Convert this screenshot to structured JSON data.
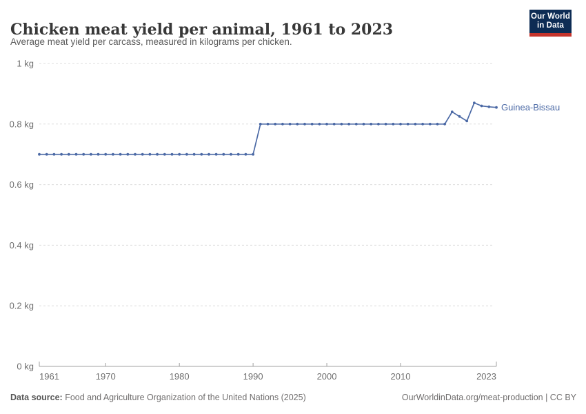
{
  "header": {
    "title": "Chicken meat yield per animal, 1961 to 2023",
    "subtitle": "Average meat yield per carcass, measured in kilograms per chicken."
  },
  "logo": {
    "line1": "Our World",
    "line2": "in Data",
    "bg_color": "#0d2c54",
    "accent_color": "#c5342c"
  },
  "footer": {
    "source_label": "Data source:",
    "source_text": "Food and Agriculture Organization of the United Nations (2025)",
    "citation": "OurWorldinData.org/meat-production | CC BY"
  },
  "chart_data": {
    "type": "line",
    "title": "Chicken meat yield per animal, 1961 to 2023",
    "subtitle": "Average meat yield per carcass, measured in kilograms per chicken.",
    "unit": "kg",
    "xlabel": "",
    "ylabel": "",
    "xlim": [
      1961,
      2023
    ],
    "ylim": [
      0,
      1
    ],
    "grid": "horizontal-dashed",
    "legend": "inline-end-label",
    "grid_color": "#dcdcdc",
    "axis_color": "#a0a0a0",
    "tick_label_color": "#6e6e6e",
    "xticks": [
      1961,
      1970,
      1980,
      1990,
      2000,
      2010,
      2023
    ],
    "yticks": [
      {
        "value": 0,
        "label": "0 kg"
      },
      {
        "value": 0.2,
        "label": "0.2 kg"
      },
      {
        "value": 0.4,
        "label": "0.4 kg"
      },
      {
        "value": 0.6,
        "label": "0.6 kg"
      },
      {
        "value": 0.8,
        "label": "0.8 kg"
      },
      {
        "value": 1,
        "label": "1 kg"
      }
    ],
    "series": [
      {
        "name": "Guinea-Bissau",
        "color": "#4b69a5",
        "x": [
          1961,
          1962,
          1963,
          1964,
          1965,
          1966,
          1967,
          1968,
          1969,
          1970,
          1971,
          1972,
          1973,
          1974,
          1975,
          1976,
          1977,
          1978,
          1979,
          1980,
          1981,
          1982,
          1983,
          1984,
          1985,
          1986,
          1987,
          1988,
          1989,
          1990,
          1991,
          1992,
          1993,
          1994,
          1995,
          1996,
          1997,
          1998,
          1999,
          2000,
          2001,
          2002,
          2003,
          2004,
          2005,
          2006,
          2007,
          2008,
          2009,
          2010,
          2011,
          2012,
          2013,
          2014,
          2015,
          2016,
          2017,
          2018,
          2019,
          2020,
          2021,
          2022,
          2023
        ],
        "values": [
          0.7,
          0.7,
          0.7,
          0.7,
          0.7,
          0.7,
          0.7,
          0.7,
          0.7,
          0.7,
          0.7,
          0.7,
          0.7,
          0.7,
          0.7,
          0.7,
          0.7,
          0.7,
          0.7,
          0.7,
          0.7,
          0.7,
          0.7,
          0.7,
          0.7,
          0.7,
          0.7,
          0.7,
          0.7,
          0.7,
          0.8,
          0.8,
          0.8,
          0.8,
          0.8,
          0.8,
          0.8,
          0.8,
          0.8,
          0.8,
          0.8,
          0.8,
          0.8,
          0.8,
          0.8,
          0.8,
          0.8,
          0.8,
          0.8,
          0.8,
          0.8,
          0.8,
          0.8,
          0.8,
          0.8,
          0.8,
          0.84,
          0.825,
          0.81,
          0.87,
          0.86,
          0.857,
          0.855
        ]
      }
    ]
  }
}
